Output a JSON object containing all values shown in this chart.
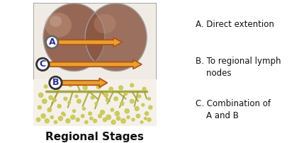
{
  "title": "Regional Stages",
  "title_fontsize": 11,
  "title_fontweight": "bold",
  "legend_lines": [
    "A. Direct extention",
    "B. To regional lymph",
    "   nodes",
    "C. Combination of",
    "   A and B"
  ],
  "legend_fontsize": 8.5,
  "bg_color": "#ffffff",
  "diagram_bg": "#f0ebe5",
  "sphere_face": "#8a5540",
  "sphere_edge": "#888888",
  "sphere_highlight": "#d4a090",
  "lymph_dot_color": "#c8c855",
  "lymph_branch_color": "#a0a030",
  "arrow_face": "#e8a030",
  "arrow_edge": "#b05010",
  "circle_bg": "#ffffff",
  "circle_border_A": "#666666",
  "circle_border_BC": "#333333",
  "label_color": "#2a2a9a"
}
